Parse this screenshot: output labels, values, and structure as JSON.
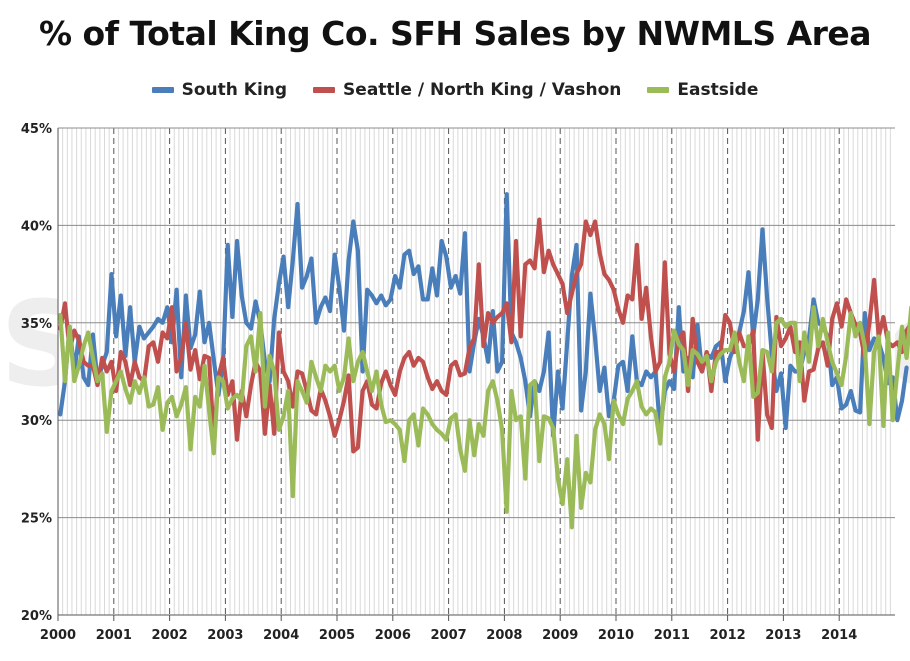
{
  "chart_data": {
    "type": "line",
    "title": "% of Total King Co. SFH Sales by NWMLS Area",
    "xlabel": "",
    "ylabel": "",
    "ylim": [
      20,
      45
    ],
    "y_ticks": [
      "20%",
      "25%",
      "30%",
      "35%",
      "40%",
      "45%"
    ],
    "x_ticks": [
      "2000",
      "2001",
      "2002",
      "2003",
      "2004",
      "2005",
      "2006",
      "2007",
      "2008",
      "2009",
      "2010",
      "2011",
      "2012",
      "2013",
      "2014"
    ],
    "x_range": [
      "2000-01",
      "2014-12"
    ],
    "grid": true,
    "legend_position": "top",
    "watermark": "SeattleBubble.com",
    "series": [
      {
        "name": "South King",
        "color": "#4a7ebb",
        "values": [
          30.3,
          32.0,
          34.8,
          32.5,
          34.3,
          32.2,
          31.8,
          34.4,
          32.0,
          32.8,
          33.5,
          37.5,
          34.3,
          36.4,
          33.3,
          35.8,
          33.0,
          34.8,
          34.2,
          34.5,
          34.8,
          35.2,
          35.0,
          35.8,
          34.0,
          36.7,
          32.2,
          36.4,
          33.7,
          34.4,
          36.6,
          34.0,
          35.0,
          33.1,
          31.3,
          33.0,
          39.0,
          35.3,
          39.2,
          36.4,
          35.0,
          34.7,
          36.1,
          35.0,
          33.0,
          32.0,
          35.2,
          37.0,
          38.4,
          35.8,
          38.2,
          41.1,
          36.8,
          37.4,
          38.3,
          35.0,
          35.8,
          36.3,
          35.6,
          38.5,
          36.8,
          34.6,
          38.2,
          40.2,
          38.7,
          32.5,
          36.7,
          36.4,
          36.0,
          36.4,
          35.9,
          36.2,
          37.4,
          36.8,
          38.5,
          38.7,
          37.5,
          37.9,
          36.2,
          36.2,
          37.8,
          36.4,
          39.2,
          38.4,
          36.8,
          37.4,
          36.5,
          39.6,
          32.5,
          34.0,
          35.2,
          34.3,
          33.0,
          35.6,
          32.5,
          33.0,
          41.6,
          34.5,
          34.0,
          33.2,
          32.0,
          30.2,
          32.0,
          31.5,
          32.5,
          34.5,
          29.2,
          32.5,
          30.6,
          34.0,
          37.4,
          39.0,
          30.5,
          32.5,
          36.5,
          34.2,
          31.5,
          32.7,
          30.2,
          31.0,
          32.8,
          33.0,
          31.5,
          34.3,
          32.0,
          31.8,
          32.5,
          32.2,
          32.5,
          29.5,
          31.5,
          32.0,
          31.6,
          35.8,
          32.5,
          33.2,
          32.2,
          34.9,
          32.5,
          33.4,
          33.2,
          33.8,
          34.0,
          32.0,
          33.2,
          33.8,
          34.5,
          35.6,
          37.6,
          34.3,
          36.2,
          39.8,
          36.3,
          33.4,
          31.5,
          32.4,
          29.6,
          32.8,
          32.5,
          32.5,
          33.5,
          34.2,
          36.2,
          35.0,
          34.8,
          34.3,
          31.8,
          32.2,
          30.6,
          30.8,
          31.5,
          30.5,
          30.4,
          35.5,
          33.6,
          34.2,
          34.0,
          33.2,
          31.9,
          32.2,
          30.0,
          31.0,
          32.7,
          null
        ]
      },
      {
        "name": "Seattle / North King / Vashon",
        "color": "#c0504d",
        "values": [
          34.7,
          36.0,
          33.6,
          34.6,
          34.1,
          33.0,
          32.8,
          32.8,
          31.8,
          33.2,
          32.5,
          33.0,
          31.5,
          33.5,
          33.0,
          31.8,
          33.0,
          32.2,
          32.0,
          33.8,
          34.0,
          33.0,
          34.5,
          34.2,
          35.8,
          32.5,
          33.2,
          35.0,
          32.6,
          33.6,
          32.1,
          33.3,
          33.2,
          29.0,
          32.2,
          33.2,
          31.3,
          32.0,
          29.0,
          31.5,
          30.2,
          31.8,
          33.0,
          32.5,
          29.3,
          31.8,
          29.3,
          34.5,
          32.5,
          32.0,
          30.7,
          32.5,
          32.4,
          31.5,
          30.5,
          30.3,
          31.6,
          31.0,
          30.2,
          29.2,
          30.0,
          31.0,
          32.3,
          28.4,
          28.6,
          31.5,
          32.0,
          30.8,
          30.6,
          31.9,
          32.5,
          31.8,
          31.3,
          32.5,
          33.2,
          33.5,
          32.8,
          33.2,
          33.0,
          32.2,
          31.6,
          32.0,
          31.5,
          31.3,
          32.8,
          33.0,
          32.3,
          32.4,
          33.7,
          34.2,
          38.0,
          33.8,
          35.5,
          35.0,
          35.3,
          35.5,
          36.0,
          34.0,
          39.2,
          34.3,
          38.0,
          38.2,
          37.8,
          40.3,
          37.6,
          38.7,
          38.0,
          37.5,
          37.0,
          35.5,
          36.5,
          37.5,
          38.0,
          40.2,
          39.5,
          40.2,
          38.6,
          37.5,
          37.2,
          36.7,
          35.7,
          35.0,
          36.4,
          36.2,
          39.0,
          35.2,
          36.8,
          34.3,
          32.5,
          33.0,
          38.1,
          33.4,
          32.5,
          34.2,
          34.5,
          31.5,
          35.2,
          33.0,
          32.5,
          33.5,
          31.5,
          33.5,
          33.5,
          35.4,
          35.0,
          33.5,
          34.5,
          33.8,
          33.8,
          34.6,
          29.0,
          33.5,
          30.3,
          29.6,
          35.3,
          33.8,
          34.2,
          34.8,
          33.5,
          34.0,
          31.0,
          32.5,
          32.6,
          33.7,
          34.0,
          32.8,
          35.2,
          36.0,
          34.8,
          36.2,
          35.5,
          34.9,
          34.5,
          33.2,
          35.0,
          37.2,
          34.3,
          35.3,
          34.0,
          33.8,
          34.0,
          33.5,
          34.6,
          35.0,
          35.3,
          35.7
        ]
      },
      {
        "name": "Eastside",
        "color": "#9bbb59",
        "values": [
          35.4,
          32.0,
          34.8,
          32.0,
          32.8,
          33.8,
          34.5,
          33.2,
          32.0,
          32.4,
          29.4,
          31.5,
          32.0,
          32.5,
          31.6,
          30.9,
          32.0,
          31.4,
          32.2,
          30.7,
          30.8,
          31.7,
          29.5,
          30.9,
          31.2,
          30.2,
          30.8,
          31.7,
          28.5,
          31.2,
          30.7,
          32.8,
          30.5,
          28.3,
          32.2,
          32.0,
          30.6,
          31.1,
          31.3,
          31.0,
          33.8,
          34.3,
          32.5,
          35.5,
          30.7,
          33.3,
          32.5,
          29.5,
          30.2,
          31.5,
          26.1,
          32.0,
          31.5,
          30.9,
          33.0,
          32.2,
          31.5,
          32.8,
          32.5,
          32.8,
          31.5,
          32.2,
          34.2,
          32.0,
          33.0,
          33.5,
          32.5,
          31.5,
          32.5,
          30.8,
          29.9,
          30.0,
          29.8,
          29.5,
          27.9,
          30.0,
          30.3,
          28.7,
          30.6,
          30.3,
          29.8,
          29.5,
          29.3,
          29.0,
          30.1,
          30.3,
          28.5,
          27.4,
          30.0,
          28.2,
          29.8,
          29.2,
          31.5,
          32.0,
          31.0,
          29.5,
          25.3,
          31.5,
          30.0,
          30.2,
          27.0,
          31.8,
          32.0,
          27.9,
          30.2,
          30.1,
          29.6,
          27.0,
          25.7,
          28.0,
          24.5,
          29.2,
          25.5,
          27.3,
          26.8,
          29.5,
          30.3,
          29.8,
          28.0,
          31.0,
          30.3,
          29.8,
          31.1,
          31.5,
          32.0,
          30.7,
          30.3,
          30.6,
          30.4,
          28.8,
          32.2,
          33.0,
          34.6,
          33.9,
          33.6,
          31.8,
          33.6,
          33.4,
          33.0,
          33.3,
          32.0,
          33.0,
          33.4,
          33.6,
          33.6,
          34.5,
          33.0,
          32.0,
          34.3,
          31.2,
          31.4,
          33.6,
          33.5,
          32.5,
          35.0,
          35.2,
          34.8,
          35.0,
          35.0,
          32.0,
          34.5,
          33.0,
          35.8,
          33.8,
          35.2,
          34.0,
          33.0,
          32.4,
          31.8,
          33.3,
          35.5,
          34.3,
          35.0,
          33.8,
          29.8,
          33.5,
          34.3,
          29.7,
          34.5,
          30.0,
          32.5,
          34.8,
          33.2,
          35.8,
          34.0,
          35.5,
          31.8
        ]
      }
    ]
  }
}
